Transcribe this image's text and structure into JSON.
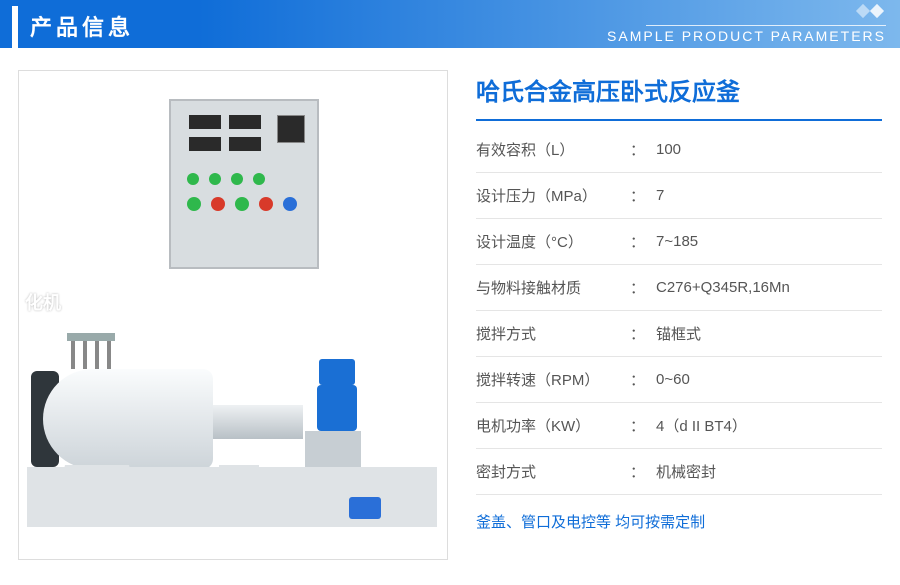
{
  "header": {
    "title": "产品信息",
    "subtitle": "SAMPLE PRODUCT PARAMETERS"
  },
  "product": {
    "title": "哈氏合金高压卧式反应釜",
    "watermark": "化机"
  },
  "specs": [
    {
      "label": "有效容积（L）",
      "value": "100"
    },
    {
      "label": "设计压力（MPa）",
      "value": "7"
    },
    {
      "label": "设计温度（°C）",
      "value": "7~185"
    },
    {
      "label": "与物料接触材质",
      "value": "C276+Q345R,16Mn"
    },
    {
      "label": "搅拌方式",
      "value": "锚框式"
    },
    {
      "label": "搅拌转速（RPM）",
      "value": "0~60"
    },
    {
      "label": "电机功率（KW）",
      "value": "4（d II BT4）"
    },
    {
      "label": "密封方式",
      "value": "机械密封"
    }
  ],
  "custom_note": "釜盖、管口及电控等 均可按需定制",
  "colors": {
    "primary": "#0f6dd8",
    "border": "#e5e5e5",
    "text": "#555555"
  }
}
